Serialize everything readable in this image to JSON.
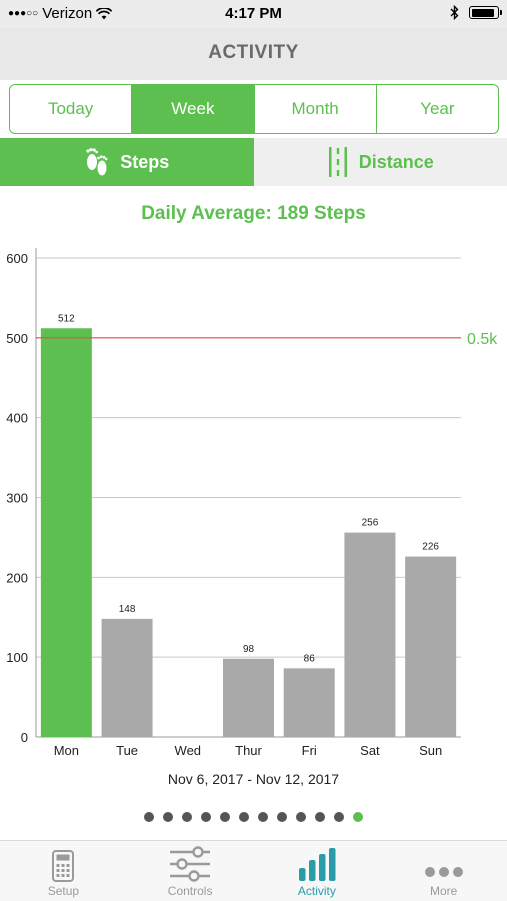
{
  "status_bar": {
    "carrier": "Verizon",
    "time": "4:17 PM",
    "signal_glyph": "●●●○○"
  },
  "nav": {
    "title": "ACTIVITY"
  },
  "period_tabs": [
    {
      "label": "Today",
      "active": false
    },
    {
      "label": "Week",
      "active": true
    },
    {
      "label": "Month",
      "active": false
    },
    {
      "label": "Year",
      "active": false
    }
  ],
  "metric_tabs": {
    "steps": "Steps",
    "distance": "Distance",
    "active": "steps"
  },
  "daily_average": "Daily Average: 189 Steps",
  "colors": {
    "accent": "#5cbf4f",
    "bar_inactive": "#a9a9a9",
    "goal_line": "#e8503f",
    "tab_active": "#2a9ca8"
  },
  "chart_data": {
    "type": "bar",
    "categories": [
      "Mon",
      "Tue",
      "Wed",
      "Thur",
      "Fri",
      "Sat",
      "Sun"
    ],
    "values": [
      512,
      148,
      0,
      98,
      86,
      256,
      226
    ],
    "value_labels": [
      "512",
      "148",
      "",
      "98",
      "86",
      "256",
      "226"
    ],
    "highlight_index": 0,
    "ylim": [
      0,
      600
    ],
    "yticks": [
      0,
      100,
      200,
      300,
      400,
      500,
      600
    ],
    "goal_value": 500,
    "goal_label": "0.5k",
    "grid": true
  },
  "date_range": "Nov 6, 2017 - Nov 12, 2017",
  "pager": {
    "count": 12,
    "active_index": 11
  },
  "tab_bar": [
    {
      "label": "Setup",
      "icon": "calculator-icon",
      "active": false
    },
    {
      "label": "Controls",
      "icon": "sliders-icon",
      "active": false
    },
    {
      "label": "Activity",
      "icon": "bar-chart-icon",
      "active": true
    },
    {
      "label": "More",
      "icon": "ellipsis-icon",
      "active": false
    }
  ]
}
